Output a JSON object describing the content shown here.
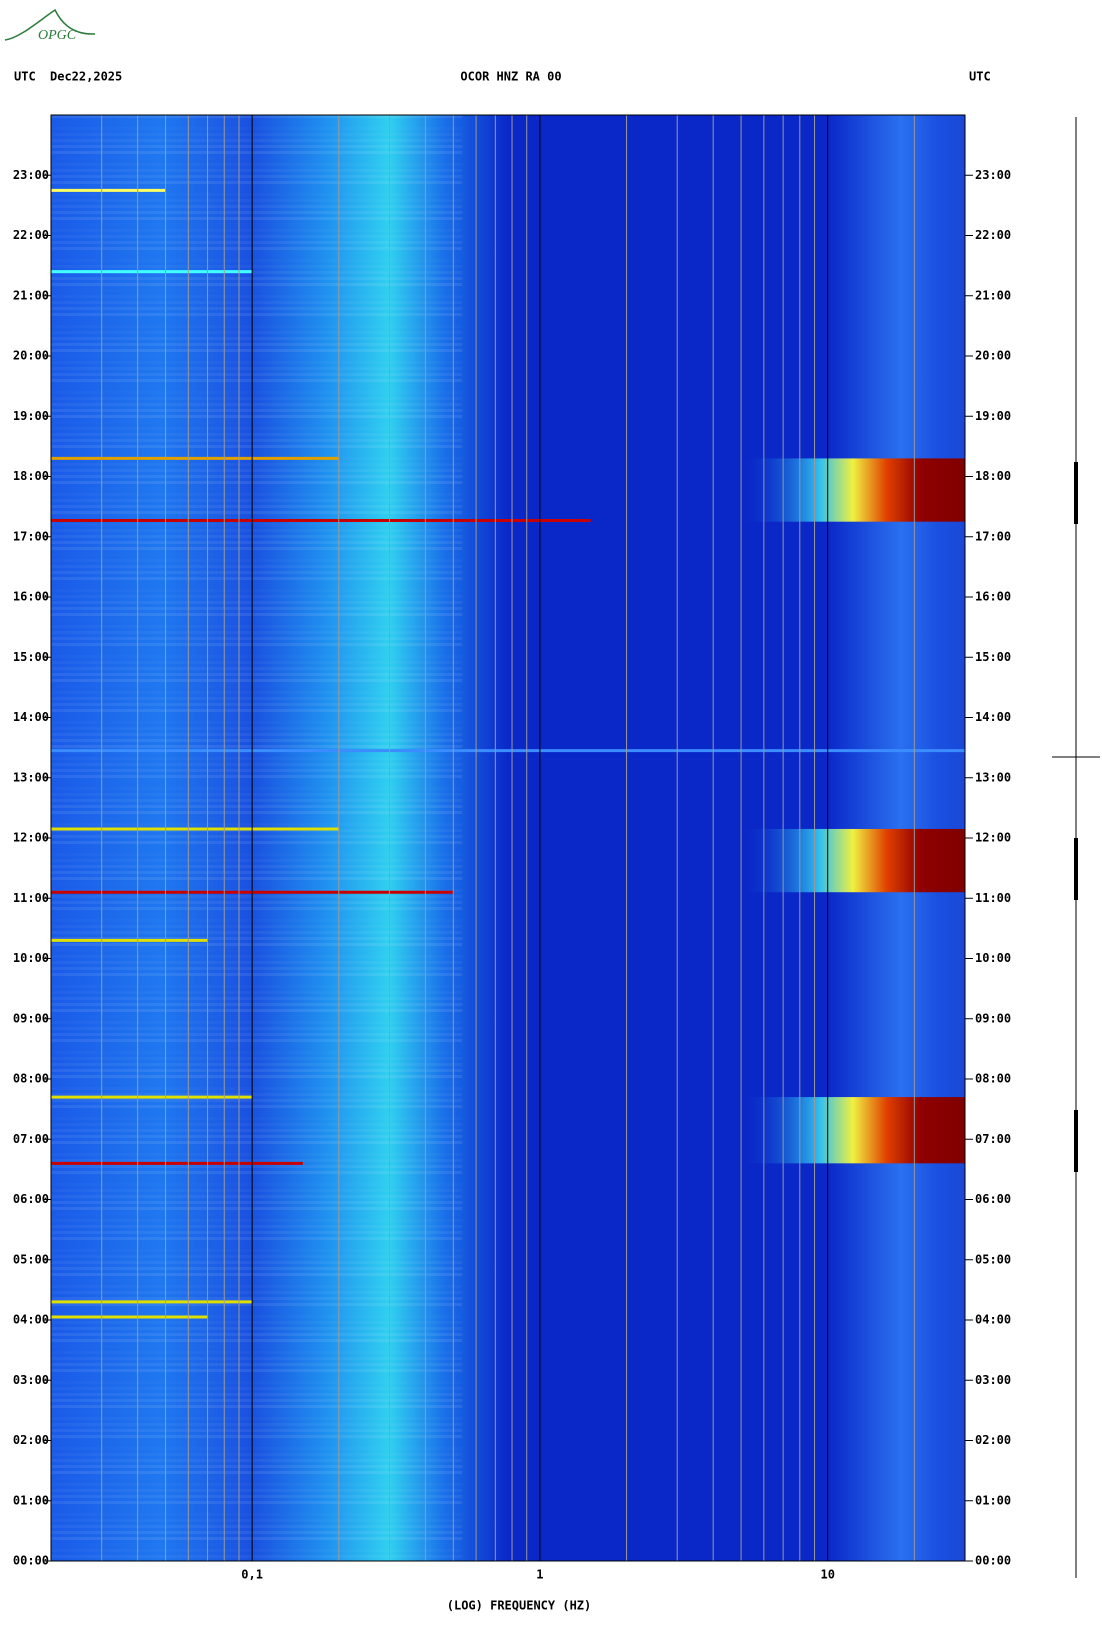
{
  "logo": "OPGC",
  "chart_data": {
    "type": "spectrogram",
    "title": "OCOR HNZ RA 00",
    "date": "Dec22,2025",
    "timezone": "UTC",
    "xlabel": "(LOG) FREQUENCY (HZ)",
    "log_x": true,
    "xlim": [
      0.02,
      30
    ],
    "ylim": [
      0,
      24
    ],
    "xticks": [
      {
        "value": 0.1,
        "label": "0,1"
      },
      1,
      10
    ],
    "xgrid": [
      0.03,
      0.04,
      0.05,
      0.06,
      0.07,
      0.08,
      0.09,
      0.2,
      0.3,
      0.4,
      0.5,
      0.6,
      0.7,
      0.8,
      0.9,
      2,
      3,
      4,
      5,
      6,
      7,
      8,
      9,
      20
    ],
    "yticks": [
      {
        "value": 0,
        "label": "00:00"
      },
      {
        "value": 1,
        "label": "01:00"
      },
      {
        "value": 2,
        "label": "02:00"
      },
      {
        "value": 3,
        "label": "03:00"
      },
      {
        "value": 4,
        "label": "04:00"
      },
      {
        "value": 5,
        "label": "05:00"
      },
      {
        "value": 6,
        "label": "06:00"
      },
      {
        "value": 7,
        "label": "07:00"
      },
      {
        "value": 8,
        "label": "08:00"
      },
      {
        "value": 9,
        "label": "09:00"
      },
      {
        "value": 10,
        "label": "10:00"
      },
      {
        "value": 11,
        "label": "11:00"
      },
      {
        "value": 12,
        "label": "12:00"
      },
      {
        "value": 13,
        "label": "13:00"
      },
      {
        "value": 14,
        "label": "14:00"
      },
      {
        "value": 15,
        "label": "15:00"
      },
      {
        "value": 16,
        "label": "16:00"
      },
      {
        "value": 17,
        "label": "17:00"
      },
      {
        "value": 18,
        "label": "18:00"
      },
      {
        "value": 19,
        "label": "19:00"
      },
      {
        "value": 20,
        "label": "20:00"
      },
      {
        "value": 21,
        "label": "21:00"
      },
      {
        "value": 22,
        "label": "22:00"
      },
      {
        "value": 23,
        "label": "23:00"
      }
    ],
    "bands": [
      {
        "y": [
          6.6,
          7.7
        ],
        "x": [
          5,
          30
        ]
      },
      {
        "y": [
          11.1,
          12.15
        ],
        "x": [
          5,
          30
        ]
      },
      {
        "y": [
          17.25,
          18.3
        ],
        "x": [
          5,
          30
        ]
      }
    ],
    "lines": [
      {
        "y": 17.27,
        "x": [
          0.02,
          1.5
        ],
        "color": "#c80000"
      },
      {
        "y": 11.1,
        "x": [
          0.02,
          0.5
        ],
        "color": "#c80000"
      },
      {
        "y": 6.6,
        "x": [
          0.02,
          0.15
        ],
        "color": "#c80000"
      },
      {
        "y": 18.3,
        "x": [
          0.02,
          0.2
        ],
        "color": "#e0a000"
      },
      {
        "y": 12.15,
        "x": [
          0.02,
          0.2
        ],
        "color": "#e0e000"
      },
      {
        "y": 7.7,
        "x": [
          0.02,
          0.1
        ],
        "color": "#e0e000"
      },
      {
        "y": 10.3,
        "x": [
          0.02,
          0.07
        ],
        "color": "#e0e000"
      },
      {
        "y": 4.3,
        "x": [
          0.02,
          0.1
        ],
        "color": "#e0e000"
      },
      {
        "y": 4.05,
        "x": [
          0.02,
          0.07
        ],
        "color": "#e0e000"
      },
      {
        "y": 21.4,
        "x": [
          0.02,
          0.1
        ],
        "color": "#40ffff"
      },
      {
        "y": 22.75,
        "x": [
          0.02,
          0.05
        ],
        "color": "#ffff60"
      },
      {
        "y": 13.45,
        "x": [
          0.02,
          30
        ],
        "color": "#3a8cff"
      }
    ]
  }
}
